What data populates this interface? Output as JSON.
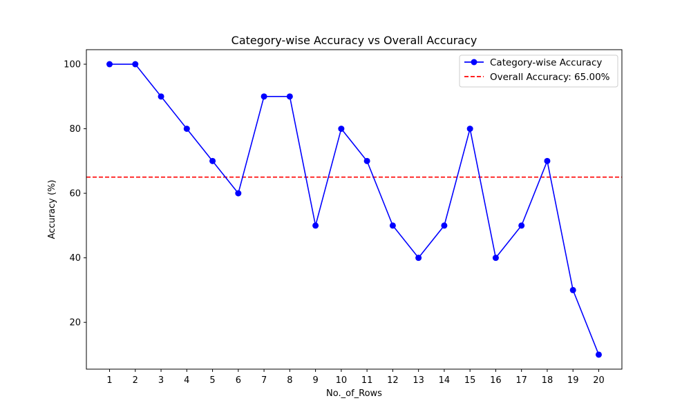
{
  "chart_data": {
    "type": "line",
    "title": "Category-wise Accuracy vs Overall Accuracy",
    "xlabel": "No._of_Rows",
    "ylabel": "Accuracy (%)",
    "x": [
      1,
      2,
      3,
      4,
      5,
      6,
      7,
      8,
      9,
      10,
      11,
      12,
      13,
      14,
      15,
      16,
      17,
      18,
      19,
      20
    ],
    "xticks": [
      "1",
      "2",
      "3",
      "4",
      "5",
      "6",
      "7",
      "8",
      "9",
      "10",
      "11",
      "12",
      "13",
      "14",
      "15",
      "16",
      "17",
      "18",
      "19",
      "20"
    ],
    "xlim": [
      0.1,
      20.9
    ],
    "ylim": [
      5.5,
      104.5
    ],
    "yticks": [
      20,
      40,
      60,
      80,
      100
    ],
    "grid": false,
    "legend_position": "top-right",
    "series": [
      {
        "name": "Category-wise Accuracy",
        "color": "#0000ff",
        "marker": "circle",
        "values": [
          100,
          100,
          90,
          80,
          70,
          60,
          90,
          90,
          50,
          80,
          70,
          50,
          40,
          50,
          80,
          40,
          50,
          70,
          30,
          10
        ]
      }
    ],
    "reference_lines": [
      {
        "name": "Overall Accuracy: 65.00%",
        "y": 65,
        "color": "#ff0000",
        "style": "dashed"
      }
    ]
  }
}
